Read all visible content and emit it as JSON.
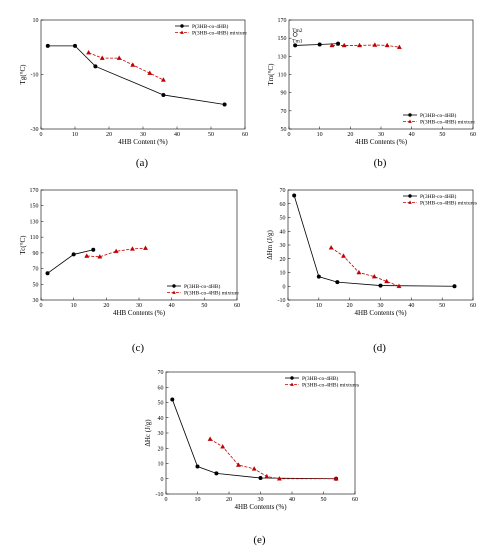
{
  "figure": {
    "colors": {
      "series_a": "#000000",
      "series_b": "#c00000",
      "series_b_marker": "#c00000"
    }
  },
  "chart_data": [
    {
      "type": "line",
      "panel_label": "(a)",
      "xlabel": "4HB Content (%)",
      "ylabel": "Tg(°C)",
      "xlim": [
        0,
        60
      ],
      "ylim": [
        -30,
        10
      ],
      "xticks": [
        0,
        10,
        20,
        30,
        40,
        50,
        60
      ],
      "yticks": [
        -30,
        -10,
        10
      ],
      "grid": false,
      "legend_position": "top-right",
      "series": [
        {
          "name": "P(3HB-co-4HB)",
          "style": "solid-circle",
          "x": [
            2,
            10,
            16,
            36,
            54
          ],
          "y": [
            0.5,
            0.5,
            -7,
            -17.5,
            -21
          ]
        },
        {
          "name": "P(3HB-co-4HB) mixture",
          "style": "dashed-triangle",
          "x": [
            14,
            18,
            23,
            27,
            32,
            36
          ],
          "y": [
            -2,
            -4,
            -4,
            -6.5,
            -9.5,
            -12
          ]
        }
      ]
    },
    {
      "type": "line",
      "panel_label": "(b)",
      "xlabel": "4HB Contents (%)",
      "ylabel": "Tm(°C)",
      "xlim": [
        0,
        60
      ],
      "ylim": [
        50,
        170
      ],
      "xticks": [
        0,
        10,
        20,
        30,
        40,
        50,
        60
      ],
      "yticks": [
        50,
        70,
        90,
        110,
        130,
        150,
        170
      ],
      "grid": false,
      "legend_position": "bottom-right",
      "annotations": [
        {
          "text": "Tm2",
          "x": 2,
          "y": 157
        },
        {
          "text": "Tm1",
          "x": 2,
          "y": 145
        }
      ],
      "extra_points": [
        {
          "x": 2,
          "y": 154,
          "style": "open-circle"
        }
      ],
      "series": [
        {
          "name": "P(3HB-co-4HB)",
          "style": "solid-circle",
          "x": [
            2,
            10,
            16
          ],
          "y": [
            142,
            143,
            144
          ]
        },
        {
          "name": "P(3HB-co-4HB) mixture",
          "style": "dashed-triangle",
          "x": [
            14,
            18,
            23,
            28,
            32,
            36
          ],
          "y": [
            142,
            142,
            142,
            142.5,
            142,
            140
          ]
        }
      ]
    },
    {
      "type": "line",
      "panel_label": "(c)",
      "xlabel": "4HB Contents (%)",
      "ylabel": "Tc(°C)",
      "xlim": [
        0,
        60
      ],
      "ylim": [
        30,
        170
      ],
      "xticks": [
        0,
        10,
        20,
        30,
        40,
        50,
        60
      ],
      "yticks": [
        30,
        50,
        70,
        90,
        110,
        130,
        150,
        170
      ],
      "grid": false,
      "legend_position": "bottom-right",
      "series": [
        {
          "name": "P(3HB-co-4HB)",
          "style": "solid-circle",
          "x": [
            2,
            10,
            16
          ],
          "y": [
            64,
            88,
            94
          ]
        },
        {
          "name": "P(3HB-co-4HB) mixture",
          "style": "dashed-triangle",
          "x": [
            14,
            18,
            23,
            28,
            32
          ],
          "y": [
            86,
            85,
            92,
            95,
            96
          ]
        }
      ]
    },
    {
      "type": "line",
      "panel_label": "(d)",
      "xlabel": "4HB Contents (%)",
      "ylabel": "ΔHm (J/g)",
      "xlim": [
        0,
        60
      ],
      "ylim": [
        -10,
        70
      ],
      "xticks": [
        0,
        10,
        20,
        30,
        40,
        50,
        60
      ],
      "yticks": [
        -10,
        0,
        10,
        20,
        30,
        40,
        50,
        60,
        70
      ],
      "grid": false,
      "legend_position": "top-right",
      "series": [
        {
          "name": "P(3HB-co-4HB)",
          "style": "solid-circle",
          "x": [
            2,
            10,
            16,
            30,
            54
          ],
          "y": [
            66,
            7,
            3,
            0.5,
            0
          ]
        },
        {
          "name": "P(3HB-co-4HB) mixtures",
          "style": "dashed-triangle",
          "x": [
            14,
            18,
            23,
            28,
            32,
            36
          ],
          "y": [
            28,
            22,
            10,
            7,
            3.5,
            0
          ]
        }
      ]
    },
    {
      "type": "line",
      "panel_label": "(e)",
      "xlabel": "4HB Contents (%)",
      "ylabel": "ΔHc (J/g)",
      "xlim": [
        0,
        60
      ],
      "ylim": [
        -10,
        70
      ],
      "xticks": [
        0,
        10,
        20,
        30,
        40,
        50,
        60
      ],
      "yticks": [
        -10,
        0,
        10,
        20,
        30,
        40,
        50,
        60,
        70
      ],
      "grid": false,
      "legend_position": "top-right",
      "series": [
        {
          "name": "P(3HB-co-4HB)",
          "style": "solid-circle",
          "x": [
            2,
            10,
            16,
            30,
            54
          ],
          "y": [
            52,
            8,
            3.5,
            0.5,
            0
          ]
        },
        {
          "name": "P(3HB-co-4HB) mixtures",
          "style": "dashed-triangle",
          "x": [
            14,
            18,
            23,
            28,
            32,
            36,
            54
          ],
          "y": [
            26,
            21,
            9,
            6.5,
            1.5,
            0,
            0
          ]
        }
      ]
    }
  ]
}
